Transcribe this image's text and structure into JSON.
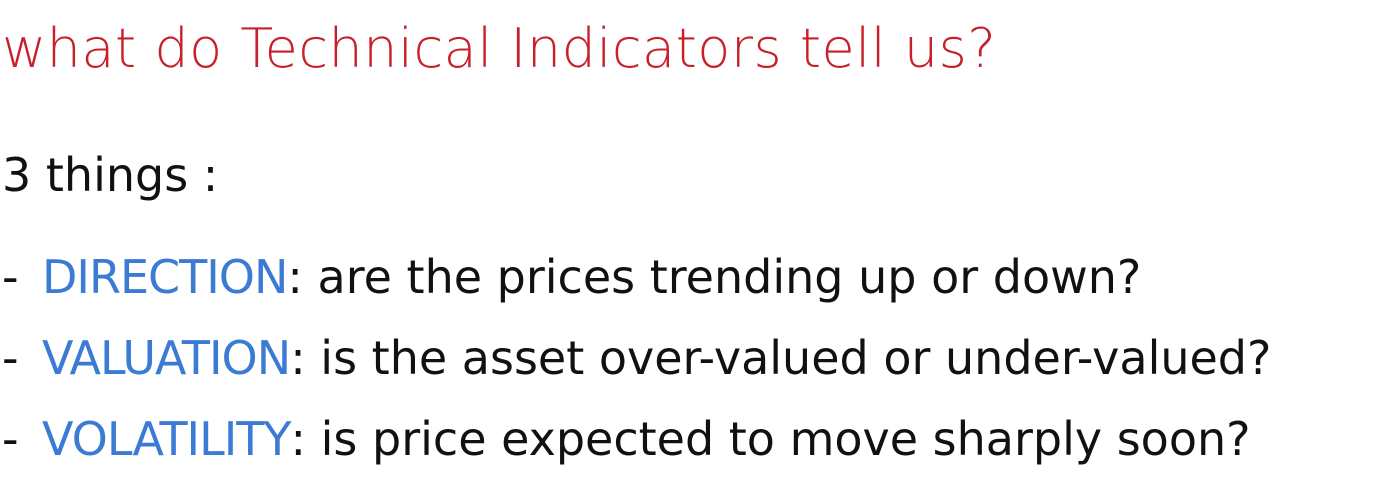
{
  "title": "what do Technical Indicators tell us?",
  "intro": "3 things :",
  "bullets": [
    {
      "dash": "-",
      "term": "DIRECTION",
      "colon": ":",
      "text": " are the prices trending up or down?"
    },
    {
      "dash": "-",
      "term": "VALUATION",
      "colon": ":",
      "text": " is the asset over-valued or under-valued?"
    },
    {
      "dash": "-",
      "term": "VOLATILITY",
      "colon": ":",
      "text": " is price expected to move sharply soon?"
    }
  ],
  "colors": {
    "title": "#c8202a",
    "term": "#3b7bd4",
    "text": "#111111"
  }
}
